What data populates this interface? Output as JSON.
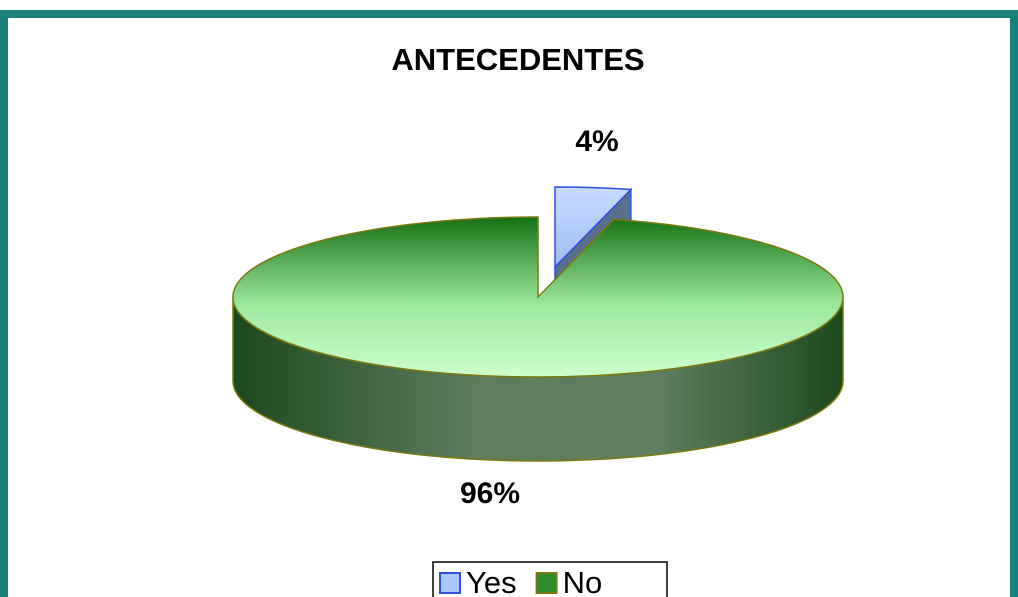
{
  "chart_data": {
    "type": "pie",
    "title": "ANTECEDENTES",
    "categories": [
      "Yes",
      "No"
    ],
    "values": [
      4,
      96
    ],
    "value_labels": [
      "4%",
      "96%"
    ],
    "colors": [
      "#a9c8ff",
      "#2e8b2e"
    ],
    "legend": "bottom"
  }
}
